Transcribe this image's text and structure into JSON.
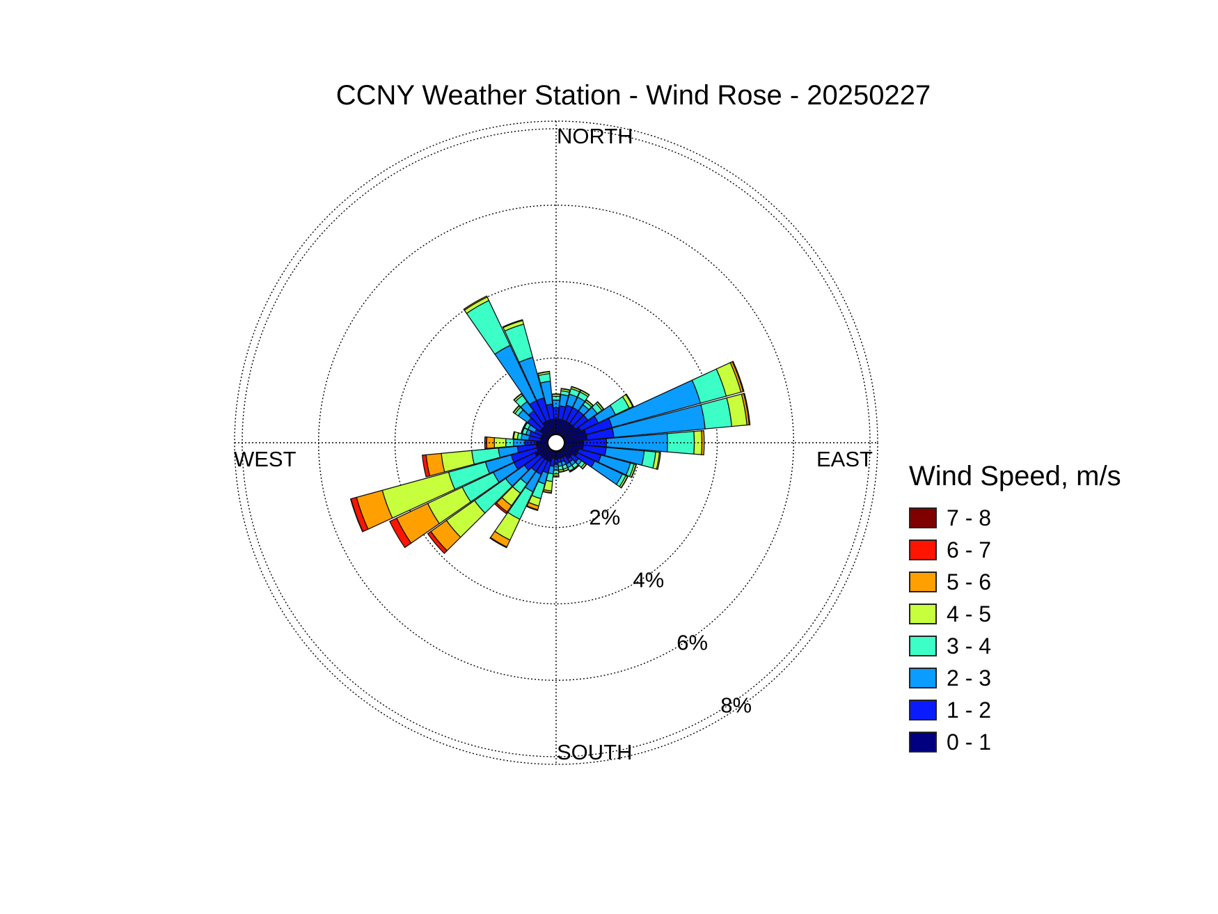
{
  "chart_data": {
    "type": "wind_rose",
    "title": "CCNY Weather Station - Wind Rose - 20250227",
    "direction_labels": {
      "north": "NORTH",
      "east": "EAST",
      "south": "SOUTH",
      "west": "WEST"
    },
    "radial_ticks": [
      2,
      4,
      6,
      8
    ],
    "radial_tick_labels": [
      "2%",
      "4%",
      "6%",
      "8%"
    ],
    "radial_max": 8.2,
    "legend": {
      "title": "Wind Speed, m/s",
      "bins": [
        "7 - 8",
        "6 - 7",
        "5 - 6",
        "4 - 5",
        "3 - 4",
        "2 - 3",
        "1 - 2",
        "0 - 1"
      ]
    },
    "speed_bins": [
      "0 - 1",
      "1 - 2",
      "2 - 3",
      "3 - 4",
      "4 - 5",
      "5 - 6",
      "6 - 7",
      "7 - 8"
    ],
    "colors": [
      "#000080",
      "#0a1cff",
      "#0a9cff",
      "#3cffc8",
      "#c8ff3c",
      "#ffa000",
      "#ff1400",
      "#800000"
    ],
    "sector_width_deg": 10,
    "sectors": [
      {
        "dir": 0,
        "cum": [
          0.4,
          0.7,
          0.9,
          1.0,
          1.05,
          1.06,
          1.06,
          1.06
        ]
      },
      {
        "dir": 10,
        "cum": [
          0.4,
          0.75,
          1.05,
          1.15,
          1.2,
          1.21,
          1.21,
          1.21
        ]
      },
      {
        "dir": 20,
        "cum": [
          0.4,
          0.8,
          1.1,
          1.25,
          1.3,
          1.31,
          1.31,
          1.31
        ]
      },
      {
        "dir": 30,
        "cum": [
          0.4,
          0.8,
          1.1,
          1.25,
          1.3,
          1.31,
          1.31,
          1.31
        ]
      },
      {
        "dir": 40,
        "cum": [
          0.4,
          0.8,
          1.0,
          1.1,
          1.15,
          1.16,
          1.16,
          1.16
        ]
      },
      {
        "dir": 50,
        "cum": [
          0.4,
          0.8,
          1.1,
          1.25,
          1.3,
          1.31,
          1.31,
          1.31
        ]
      },
      {
        "dir": 60,
        "cum": [
          0.5,
          1.0,
          1.5,
          1.9,
          2.0,
          2.02,
          2.02,
          2.02
        ]
      },
      {
        "dir": 70,
        "cum": [
          0.6,
          1.3,
          3.7,
          4.4,
          4.8,
          4.86,
          4.88,
          4.88
        ]
      },
      {
        "dir": 80,
        "cum": [
          0.6,
          1.3,
          3.7,
          4.4,
          4.8,
          4.86,
          4.88,
          4.88
        ]
      },
      {
        "dir": 90,
        "cum": [
          0.5,
          1.1,
          2.7,
          3.4,
          3.6,
          3.66,
          3.66,
          3.66
        ]
      },
      {
        "dir": 100,
        "cum": [
          0.5,
          1.1,
          2.1,
          2.4,
          2.5,
          2.53,
          2.53,
          2.53
        ]
      },
      {
        "dir": 110,
        "cum": [
          0.4,
          1.0,
          1.8,
          1.9,
          1.95,
          1.96,
          1.96,
          1.96
        ]
      },
      {
        "dir": 120,
        "cum": [
          0.4,
          0.9,
          1.7,
          1.8,
          1.85,
          1.86,
          1.86,
          1.86
        ]
      },
      {
        "dir": 130,
        "cum": [
          0.3,
          0.5,
          0.6,
          0.7,
          0.75,
          0.76,
          0.76,
          0.76
        ]
      },
      {
        "dir": 140,
        "cum": [
          0.3,
          0.4,
          0.5,
          0.6,
          0.62,
          0.63,
          0.63,
          0.63
        ]
      },
      {
        "dir": 150,
        "cum": [
          0.2,
          0.4,
          0.5,
          0.6,
          0.62,
          0.63,
          0.63,
          0.63
        ]
      },
      {
        "dir": 160,
        "cum": [
          0.2,
          0.3,
          0.4,
          0.5,
          0.55,
          0.56,
          0.56,
          0.56
        ]
      },
      {
        "dir": 170,
        "cum": [
          0.2,
          0.3,
          0.4,
          0.5,
          0.55,
          0.56,
          0.56,
          0.56
        ]
      },
      {
        "dir": 180,
        "cum": [
          0.2,
          0.35,
          0.5,
          0.6,
          0.65,
          0.68,
          0.68,
          0.68
        ]
      },
      {
        "dir": 190,
        "cum": [
          0.2,
          0.4,
          0.6,
          0.8,
          1.05,
          1.1,
          1.11,
          1.11
        ]
      },
      {
        "dir": 200,
        "cum": [
          0.3,
          0.6,
          0.9,
          1.3,
          1.5,
          1.6,
          1.62,
          1.62
        ]
      },
      {
        "dir": 210,
        "cum": [
          0.3,
          0.7,
          1.2,
          2.0,
          2.6,
          2.8,
          2.82,
          2.82
        ]
      },
      {
        "dir": 220,
        "cum": [
          0.3,
          0.7,
          1.1,
          1.4,
          1.8,
          2.0,
          2.05,
          2.05
        ]
      },
      {
        "dir": 230,
        "cum": [
          0.3,
          0.8,
          1.4,
          2.4,
          3.3,
          3.8,
          3.9,
          3.9
        ]
      },
      {
        "dir": 240,
        "cum": [
          0.4,
          1.0,
          1.6,
          2.5,
          3.5,
          4.4,
          4.6,
          4.6
        ]
      },
      {
        "dir": 250,
        "cum": [
          0.3,
          1.0,
          1.7,
          2.7,
          4.5,
          5.2,
          5.35,
          5.36
        ]
      },
      {
        "dir": 260,
        "cum": [
          0.3,
          0.8,
          1.3,
          2.0,
          2.8,
          3.2,
          3.3,
          3.3
        ]
      },
      {
        "dir": 270,
        "cum": [
          0.3,
          0.6,
          0.9,
          1.1,
          1.4,
          1.6,
          1.65,
          1.65
        ]
      },
      {
        "dir": 280,
        "cum": [
          0.2,
          0.5,
          0.7,
          0.8,
          0.9,
          0.92,
          0.92,
          0.92
        ]
      },
      {
        "dir": 290,
        "cum": [
          0.2,
          0.5,
          0.6,
          0.7,
          0.72,
          0.73,
          0.73,
          0.73
        ]
      },
      {
        "dir": 300,
        "cum": [
          0.2,
          0.4,
          0.6,
          0.7,
          0.72,
          0.73,
          0.73,
          0.73
        ]
      },
      {
        "dir": 310,
        "cum": [
          0.3,
          0.7,
          1.0,
          1.1,
          1.15,
          1.16,
          1.16,
          1.16
        ]
      },
      {
        "dir": 320,
        "cum": [
          0.3,
          0.8,
          1.1,
          1.3,
          1.35,
          1.36,
          1.36,
          1.36
        ]
      },
      {
        "dir": 330,
        "cum": [
          0.4,
          1.0,
          2.6,
          3.9,
          4.0,
          4.03,
          4.03,
          4.03
        ]
      },
      {
        "dir": 340,
        "cum": [
          0.4,
          1.0,
          2.1,
          3.0,
          3.1,
          3.12,
          3.12,
          3.12
        ]
      },
      {
        "dir": 350,
        "cum": [
          0.4,
          0.8,
          1.4,
          1.6,
          1.65,
          1.66,
          1.66,
          1.66
        ]
      }
    ]
  }
}
